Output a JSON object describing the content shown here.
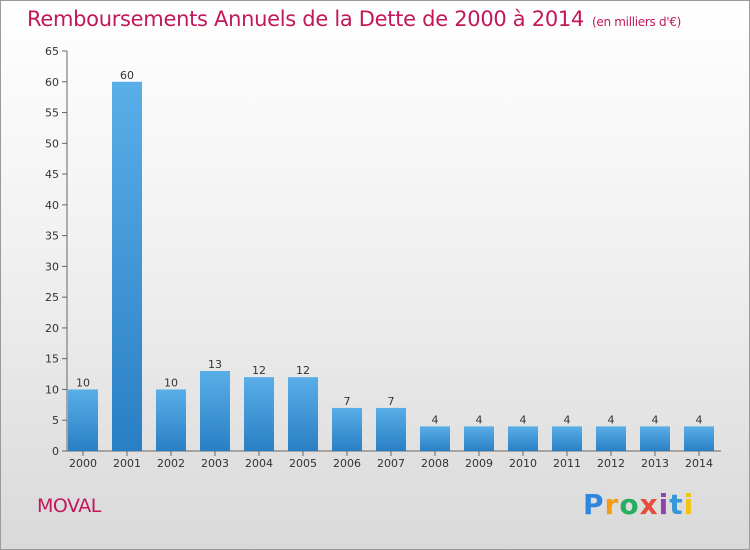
{
  "header": {
    "title": "Remboursements Annuels de la Dette de 2000 à 2014",
    "unit": "(en milliers d'€)"
  },
  "footer": {
    "commune": "MOVAL",
    "logo": "Proxiti"
  },
  "colors": {
    "title": "#c2185b",
    "bar_top": "#5aaee8",
    "bar_bottom": "#2a7fc4",
    "axis": "#666666",
    "grid": "#cccccc"
  },
  "chart_data": {
    "type": "bar",
    "title": "Remboursements Annuels de la Dette de 2000 à 2014",
    "xlabel": "",
    "ylabel": "",
    "categories": [
      "2000",
      "2001",
      "2002",
      "2003",
      "2004",
      "2005",
      "2006",
      "2007",
      "2008",
      "2009",
      "2010",
      "2011",
      "2012",
      "2013",
      "2014"
    ],
    "values": [
      10,
      60,
      10,
      13,
      12,
      12,
      7,
      7,
      4,
      4,
      4,
      4,
      4,
      4,
      4
    ],
    "ylim": [
      0,
      65
    ],
    "yticks": [
      0,
      5,
      10,
      15,
      20,
      25,
      30,
      35,
      40,
      45,
      50,
      55,
      60,
      65
    ],
    "grid": false,
    "data_labels": true
  }
}
